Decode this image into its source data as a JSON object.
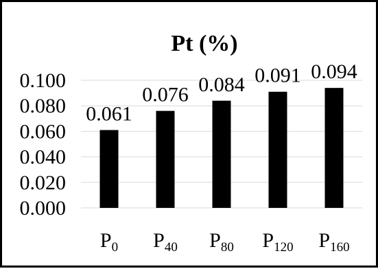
{
  "chart_data": {
    "type": "bar",
    "title": "Pt (%)",
    "xlabel": "",
    "ylabel": "",
    "categories": [
      {
        "main": "P",
        "sub": "0"
      },
      {
        "main": "P",
        "sub": "40"
      },
      {
        "main": "P",
        "sub": "80"
      },
      {
        "main": "P",
        "sub": "120"
      },
      {
        "main": "P",
        "sub": "160"
      }
    ],
    "values": [
      0.061,
      0.076,
      0.084,
      0.091,
      0.094
    ],
    "data_labels": [
      "0.061",
      "0.076",
      "0.084",
      "0.091",
      "0.094"
    ],
    "ylim": [
      0,
      0.1
    ],
    "yticks": [
      "0.000",
      "0.020",
      "0.040",
      "0.060",
      "0.080",
      "0.100"
    ],
    "grid": true,
    "legend": "none",
    "bar_color": "#000000",
    "grid_color": "#d9d9d9",
    "frame_color": "#000000"
  }
}
